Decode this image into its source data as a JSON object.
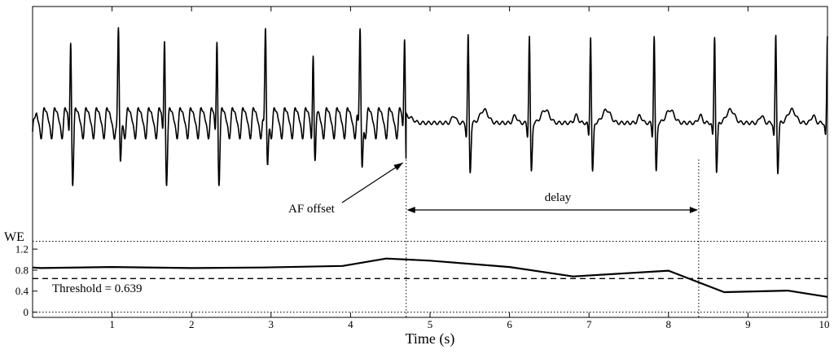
{
  "chart_data": {
    "type": "line",
    "xlabel": "Time (s)",
    "xlim": [
      0,
      10
    ],
    "x_ticks": [
      "1",
      "2",
      "3",
      "4",
      "5",
      "6",
      "7",
      "8",
      "9",
      "10"
    ],
    "signal": {
      "ecg_af_beats_s": [
        0.48,
        1.08,
        1.66,
        2.32,
        2.93,
        3.53,
        4.12,
        4.68
      ],
      "ecg_sinus_beats_s": [
        5.48,
        6.25,
        7.02,
        7.82,
        8.58,
        9.35,
        10.0
      ]
    },
    "we_panel": {
      "ylabel": "WE",
      "ylim": [
        -0.1,
        1.45
      ],
      "y_ticks": [
        "0",
        "0.4",
        "0.8",
        "1.2"
      ],
      "upper_reference": 1.35,
      "threshold": 0.639,
      "threshold_label": "Threshold = 0.639",
      "x": [
        0,
        0.1,
        1,
        2,
        2.9,
        3.9,
        4.45,
        5.0,
        6.0,
        6.8,
        8.0,
        8.7,
        9.5,
        10.0
      ],
      "y": [
        0.85,
        0.84,
        0.86,
        0.84,
        0.85,
        0.88,
        1.02,
        0.98,
        0.86,
        0.68,
        0.79,
        0.38,
        0.41,
        0.29
      ]
    },
    "annotations": {
      "af_offset_label": "AF offset",
      "af_offset_s": 4.7,
      "delay_label": "delay",
      "detection_s": 8.38
    }
  }
}
